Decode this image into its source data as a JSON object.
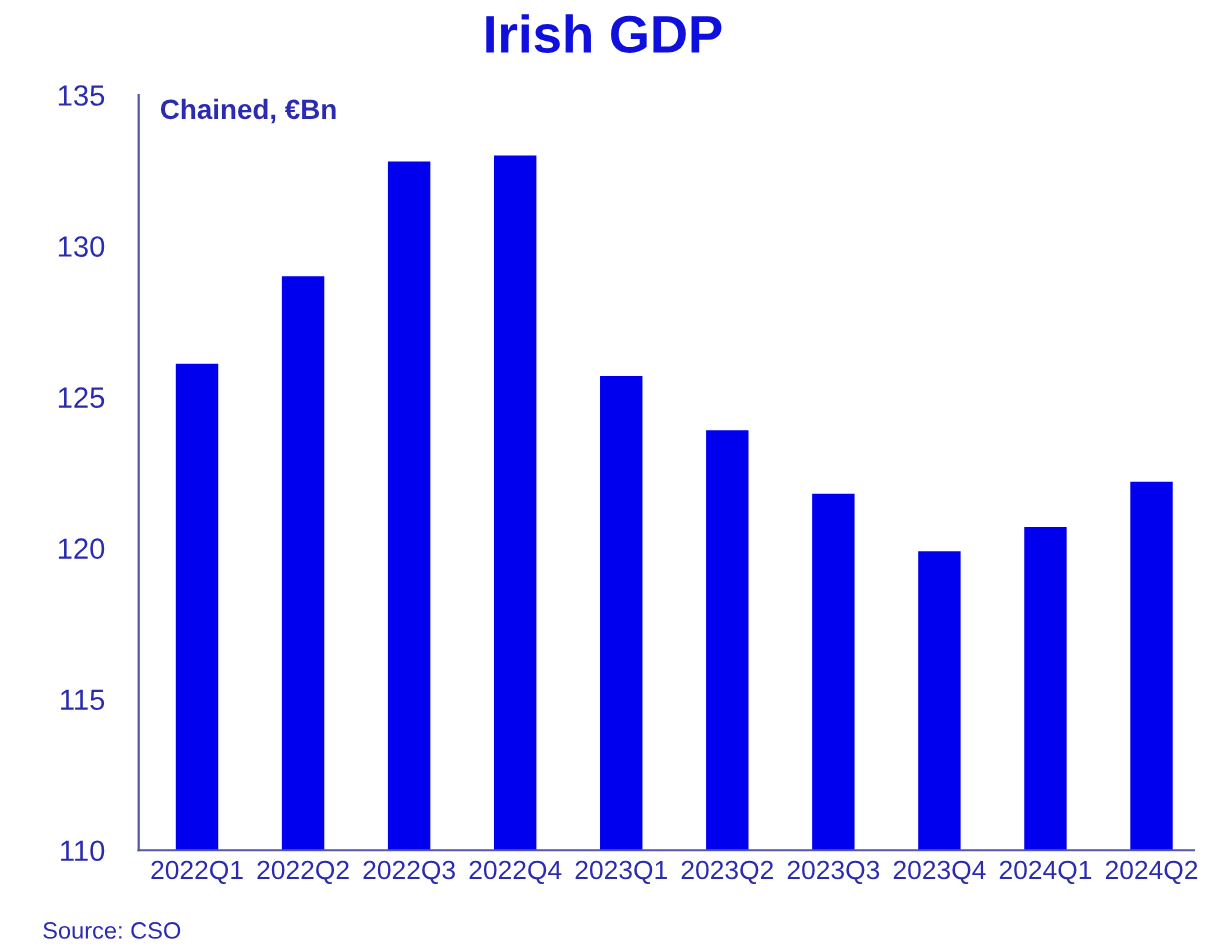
{
  "chart_data": {
    "type": "bar",
    "title": "Irish GDP",
    "ylabel": "Chained, €Bn",
    "categories": [
      "2022Q1",
      "2022Q2",
      "2022Q3",
      "2022Q4",
      "2023Q1",
      "2023Q2",
      "2023Q3",
      "2023Q4",
      "2024Q1",
      "2024Q2"
    ],
    "values": [
      126.1,
      129.0,
      132.8,
      133.0,
      125.7,
      123.9,
      121.8,
      119.9,
      120.7,
      122.2
    ],
    "color": "#0000ee",
    "ylim": [
      110,
      135
    ],
    "yticks": [
      110,
      115,
      120,
      125,
      130,
      135
    ],
    "grid": false,
    "legend": false,
    "annotations": [
      "Source: CSO"
    ]
  }
}
